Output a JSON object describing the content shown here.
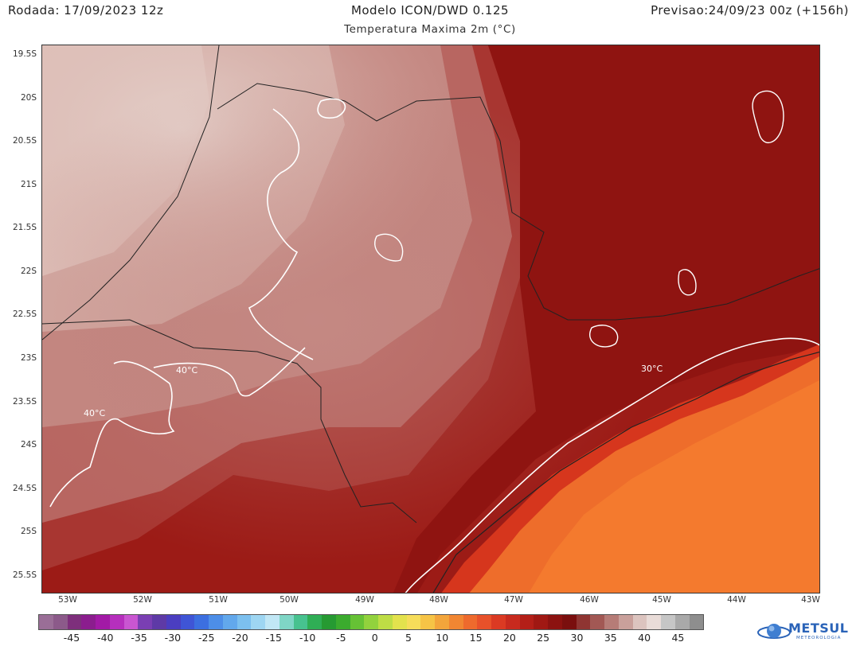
{
  "header": {
    "run": "Rodada: 17/09/2023 12z",
    "model": "Modelo ICON/DWD 0.125",
    "forecast": "Previsao:24/09/23 00z (+156h)",
    "variable": "Temperatura Maxima 2m (°C)"
  },
  "map": {
    "lat_labels": [
      "19.5S",
      "20S",
      "20.5S",
      "21S",
      "21.5S",
      "22S",
      "22.5S",
      "23S",
      "23.5S",
      "24S",
      "24.5S",
      "25S",
      "25.5S"
    ],
    "lon_labels": [
      "53W",
      "52W",
      "51W",
      "50W",
      "49W",
      "48W",
      "47W",
      "46W",
      "45W",
      "44W",
      "43W"
    ],
    "contour_labels": [
      "40°C",
      "40°C",
      "30°C"
    ],
    "colors": {
      "hot_land_dark": "#8e1412",
      "hot_land": "#a8221b",
      "warm_land": "#b85a55",
      "interior_pink": "#c98f88",
      "very_hot_light": "#dfc2bb",
      "ocean": "#f0762c",
      "coast_band": "#d9361e"
    }
  },
  "colorbar": {
    "labels": [
      "-45",
      "-40",
      "-35",
      "-30",
      "-25",
      "-20",
      "-15",
      "-10",
      "-5",
      "0",
      "5",
      "10",
      "15",
      "20",
      "25",
      "30",
      "35",
      "40",
      "45"
    ],
    "colors": [
      "#9a6e97",
      "#8c5a8a",
      "#7e2f7c",
      "#8b1d8e",
      "#a21aa6",
      "#b62fbd",
      "#c956d1",
      "#7a3fb3",
      "#5e3aa6",
      "#4b3ec0",
      "#3f55d6",
      "#3c6fe0",
      "#4d8ee8",
      "#62a8ec",
      "#7cc0ef",
      "#9ed6f2",
      "#c1e7f5",
      "#7fd6c6",
      "#47c28f",
      "#2fae55",
      "#269a32",
      "#3bab2e",
      "#66c235",
      "#92d23d",
      "#bedd45",
      "#e3e24d",
      "#f6dd5a",
      "#f6c446",
      "#f3a53b",
      "#f18632",
      "#ee6a2d",
      "#e8512a",
      "#db3a23",
      "#c82a1e",
      "#b41f18",
      "#a01813",
      "#8c1210",
      "#7a0f0e",
      "#8f3532",
      "#a25854",
      "#b67c77",
      "#c9a09b",
      "#dcc4bf",
      "#e9dcd8",
      "#c6c6c6",
      "#a9a9a9",
      "#8e8e8e"
    ]
  },
  "logo": {
    "name": "METSUL",
    "tagline": "METEOROLOGIA"
  }
}
